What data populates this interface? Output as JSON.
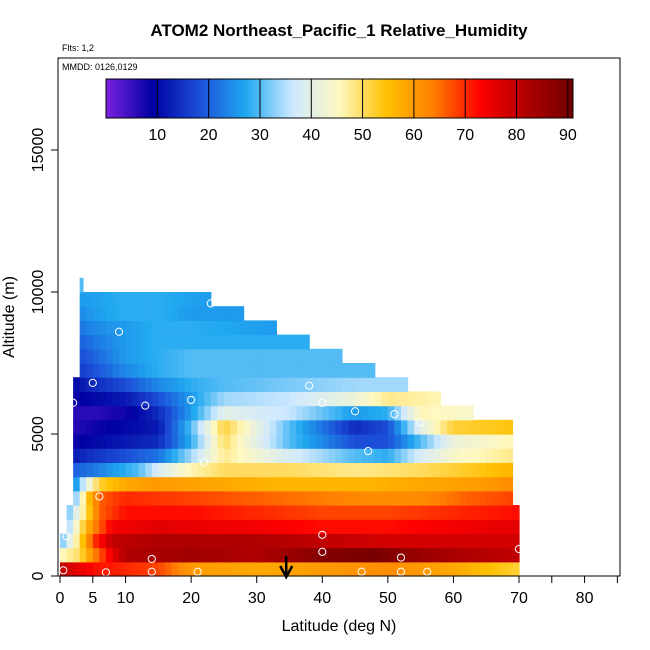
{
  "chart_data": {
    "type": "heatmap",
    "title": "ATOM2 Northeast_Pacific_1 Relative_Humidity",
    "flights_label": "Flts: 1,2",
    "dates_label": "MMDD: 0126,0129",
    "xlabel": "Latitude (deg N)",
    "ylabel": "Altitude (m)",
    "xlim": [
      0,
      85
    ],
    "ylim": [
      0,
      18000
    ],
    "x_ticks": [
      0,
      5,
      10,
      20,
      30,
      40,
      50,
      60,
      70,
      80
    ],
    "x_minor_ticks": [
      75,
      85
    ],
    "y_ticks": [
      0,
      5000,
      10000,
      15000
    ],
    "colorbar": {
      "min": 0,
      "max": 91,
      "ticks": [
        10,
        20,
        30,
        40,
        50,
        60,
        70,
        80,
        90
      ],
      "colors": [
        "#7b22e0",
        "#0000a0",
        "#1c4fd8",
        "#20a8f0",
        "#cfe9ff",
        "#fff8c0",
        "#ffc000",
        "#ff8000",
        "#ff0000",
        "#b00000",
        "#700000"
      ]
    },
    "layers": [
      {
        "alt": [
          0,
          500
        ],
        "lat": [
          0,
          70
        ],
        "rh": [
          [
            0,
            80
          ],
          [
            5,
            72
          ],
          [
            10,
            70
          ],
          [
            15,
            68
          ],
          [
            20,
            60
          ],
          [
            30,
            58
          ],
          [
            40,
            60
          ],
          [
            50,
            62
          ],
          [
            60,
            58
          ],
          [
            70,
            52
          ]
        ]
      },
      {
        "alt": [
          500,
          1000
        ],
        "lat": [
          0,
          70
        ],
        "rh": [
          [
            0,
            45
          ],
          [
            3,
            50
          ],
          [
            5,
            62
          ],
          [
            8,
            75
          ],
          [
            10,
            82
          ],
          [
            20,
            84
          ],
          [
            30,
            82
          ],
          [
            40,
            88
          ],
          [
            48,
            90
          ],
          [
            55,
            85
          ],
          [
            62,
            82
          ],
          [
            70,
            80
          ]
        ]
      },
      {
        "alt": [
          1000,
          1500
        ],
        "lat": [
          0,
          70
        ],
        "rh": [
          [
            0,
            30
          ],
          [
            3,
            50
          ],
          [
            5,
            68
          ],
          [
            8,
            80
          ],
          [
            15,
            82
          ],
          [
            30,
            82
          ],
          [
            40,
            80
          ],
          [
            50,
            78
          ],
          [
            60,
            78
          ],
          [
            70,
            78
          ]
        ]
      },
      {
        "alt": [
          1500,
          2000
        ],
        "lat": [
          1,
          70
        ],
        "rh": [
          [
            1,
            32
          ],
          [
            3,
            48
          ],
          [
            5,
            62
          ],
          [
            8,
            74
          ],
          [
            15,
            76
          ],
          [
            30,
            74
          ],
          [
            40,
            72
          ],
          [
            50,
            72
          ],
          [
            60,
            74
          ],
          [
            70,
            76
          ]
        ]
      },
      {
        "alt": [
          2000,
          2500
        ],
        "lat": [
          1,
          70
        ],
        "rh": [
          [
            1,
            30
          ],
          [
            4,
            50
          ],
          [
            6,
            66
          ],
          [
            10,
            72
          ],
          [
            20,
            72
          ],
          [
            30,
            70
          ],
          [
            40,
            68
          ],
          [
            50,
            68
          ],
          [
            60,
            70
          ],
          [
            70,
            72
          ]
        ]
      },
      {
        "alt": [
          2500,
          3000
        ],
        "lat": [
          2,
          69
        ],
        "rh": [
          [
            2,
            28
          ],
          [
            4,
            52
          ],
          [
            6,
            66
          ],
          [
            10,
            70
          ],
          [
            20,
            68
          ],
          [
            30,
            66
          ],
          [
            40,
            64
          ],
          [
            48,
            62
          ],
          [
            55,
            62
          ],
          [
            62,
            66
          ],
          [
            69,
            68
          ]
        ]
      },
      {
        "alt": [
          3000,
          3500
        ],
        "lat": [
          2,
          69
        ],
        "rh": [
          [
            2,
            22
          ],
          [
            4,
            40
          ],
          [
            6,
            52
          ],
          [
            10,
            58
          ],
          [
            15,
            60
          ],
          [
            25,
            58
          ],
          [
            35,
            56
          ],
          [
            45,
            56
          ],
          [
            55,
            58
          ],
          [
            65,
            60
          ],
          [
            69,
            62
          ]
        ]
      },
      {
        "alt": [
          3500,
          4000
        ],
        "lat": [
          2,
          69
        ],
        "rh": [
          [
            2,
            20
          ],
          [
            5,
            22
          ],
          [
            8,
            26
          ],
          [
            12,
            30
          ],
          [
            15,
            38
          ],
          [
            20,
            46
          ],
          [
            25,
            50
          ],
          [
            35,
            50
          ],
          [
            45,
            48
          ],
          [
            55,
            50
          ],
          [
            65,
            54
          ],
          [
            69,
            56
          ]
        ]
      },
      {
        "alt": [
          4000,
          4500
        ],
        "lat": [
          2,
          69
        ],
        "rh": [
          [
            2,
            12
          ],
          [
            5,
            15
          ],
          [
            10,
            18
          ],
          [
            15,
            22
          ],
          [
            20,
            34
          ],
          [
            25,
            48
          ],
          [
            35,
            38
          ],
          [
            45,
            30
          ],
          [
            50,
            28
          ],
          [
            55,
            38
          ],
          [
            60,
            44
          ],
          [
            69,
            48
          ]
        ]
      },
      {
        "alt": [
          4500,
          5000
        ],
        "lat": [
          2,
          69
        ],
        "rh": [
          [
            2,
            8
          ],
          [
            5,
            10
          ],
          [
            10,
            12
          ],
          [
            15,
            14
          ],
          [
            20,
            28
          ],
          [
            25,
            50
          ],
          [
            35,
            30
          ],
          [
            45,
            18
          ],
          [
            50,
            18
          ],
          [
            55,
            30
          ],
          [
            60,
            42
          ],
          [
            69,
            46
          ]
        ]
      },
      {
        "alt": [
          5000,
          5500
        ],
        "lat": [
          2,
          69
        ],
        "rh": [
          [
            2,
            6
          ],
          [
            5,
            8
          ],
          [
            10,
            10
          ],
          [
            15,
            12
          ],
          [
            20,
            30
          ],
          [
            25,
            52
          ],
          [
            35,
            30
          ],
          [
            45,
            14
          ],
          [
            50,
            18
          ],
          [
            55,
            40
          ],
          [
            60,
            52
          ],
          [
            69,
            54
          ]
        ]
      },
      {
        "alt": [
          5500,
          6000
        ],
        "lat": [
          2,
          63
        ],
        "rh": [
          [
            2,
            6
          ],
          [
            5,
            6
          ],
          [
            10,
            8
          ],
          [
            15,
            14
          ],
          [
            20,
            26
          ],
          [
            25,
            40
          ],
          [
            35,
            36
          ],
          [
            45,
            26
          ],
          [
            50,
            28
          ],
          [
            55,
            46
          ],
          [
            63,
            44
          ]
        ]
      },
      {
        "alt": [
          6000,
          6500
        ],
        "lat": [
          2,
          58
        ],
        "rh": [
          [
            2,
            8
          ],
          [
            5,
            10
          ],
          [
            10,
            12
          ],
          [
            15,
            18
          ],
          [
            20,
            26
          ],
          [
            25,
            34
          ],
          [
            35,
            36
          ],
          [
            45,
            42
          ],
          [
            50,
            48
          ],
          [
            58,
            46
          ]
        ]
      },
      {
        "alt": [
          6500,
          7000
        ],
        "lat": [
          2,
          53
        ],
        "rh": [
          [
            2,
            10
          ],
          [
            5,
            14
          ],
          [
            10,
            18
          ],
          [
            15,
            24
          ],
          [
            20,
            28
          ],
          [
            25,
            30
          ],
          [
            35,
            32
          ],
          [
            45,
            34
          ],
          [
            53,
            34
          ]
        ]
      },
      {
        "alt": [
          7000,
          7500
        ],
        "lat": [
          3,
          48
        ],
        "rh": [
          [
            3,
            16
          ],
          [
            5,
            18
          ],
          [
            10,
            24
          ],
          [
            15,
            28
          ],
          [
            20,
            30
          ],
          [
            30,
            30
          ],
          [
            40,
            30
          ],
          [
            48,
            30
          ]
        ]
      },
      {
        "alt": [
          7500,
          8000
        ],
        "lat": [
          3,
          43
        ],
        "rh": [
          [
            3,
            18
          ],
          [
            5,
            20
          ],
          [
            10,
            26
          ],
          [
            15,
            28
          ],
          [
            20,
            30
          ],
          [
            30,
            30
          ],
          [
            43,
            30
          ]
        ]
      },
      {
        "alt": [
          8000,
          8500
        ],
        "lat": [
          3,
          38
        ],
        "rh": [
          [
            3,
            20
          ],
          [
            5,
            22
          ],
          [
            10,
            26
          ],
          [
            15,
            28
          ],
          [
            20,
            28
          ],
          [
            30,
            28
          ],
          [
            38,
            28
          ]
        ]
      },
      {
        "alt": [
          8500,
          9000
        ],
        "lat": [
          3,
          33
        ],
        "rh": [
          [
            3,
            22
          ],
          [
            5,
            24
          ],
          [
            10,
            26
          ],
          [
            15,
            28
          ],
          [
            20,
            28
          ],
          [
            33,
            26
          ]
        ]
      },
      {
        "alt": [
          9000,
          9500
        ],
        "lat": [
          3,
          28
        ],
        "rh": [
          [
            3,
            24
          ],
          [
            5,
            26
          ],
          [
            10,
            28
          ],
          [
            15,
            28
          ],
          [
            20,
            26
          ],
          [
            28,
            26
          ]
        ]
      },
      {
        "alt": [
          9500,
          10000
        ],
        "lat": [
          3,
          23
        ],
        "rh": [
          [
            3,
            26
          ],
          [
            10,
            28
          ],
          [
            15,
            28
          ],
          [
            23,
            26
          ]
        ]
      },
      {
        "alt": [
          10000,
          10500
        ],
        "lat": [
          3,
          3.5
        ],
        "rh": [
          [
            3,
            30
          ],
          [
            3.5,
            30
          ]
        ]
      }
    ],
    "observations": [
      [
        0.5,
        200
      ],
      [
        7,
        130
      ],
      [
        14,
        150
      ],
      [
        21,
        150
      ],
      [
        46,
        150
      ],
      [
        52,
        150
      ],
      [
        56,
        150
      ],
      [
        14,
        600
      ],
      [
        40,
        850
      ],
      [
        52,
        650
      ],
      [
        70,
        950
      ],
      [
        1,
        1400
      ],
      [
        40,
        1450
      ],
      [
        6,
        2800
      ],
      [
        22,
        4000
      ],
      [
        47,
        4400
      ],
      [
        1,
        4700
      ],
      [
        55,
        5400
      ],
      [
        2,
        6100
      ],
      [
        13,
        6000
      ],
      [
        45,
        5800
      ],
      [
        51,
        5700
      ],
      [
        20,
        6200
      ],
      [
        40,
        6100
      ],
      [
        38,
        6700
      ],
      [
        5,
        6800
      ],
      [
        9,
        8600
      ],
      [
        23,
        9600
      ]
    ],
    "markers": [
      {
        "type": "arrow-down",
        "x": 34.5
      }
    ]
  }
}
